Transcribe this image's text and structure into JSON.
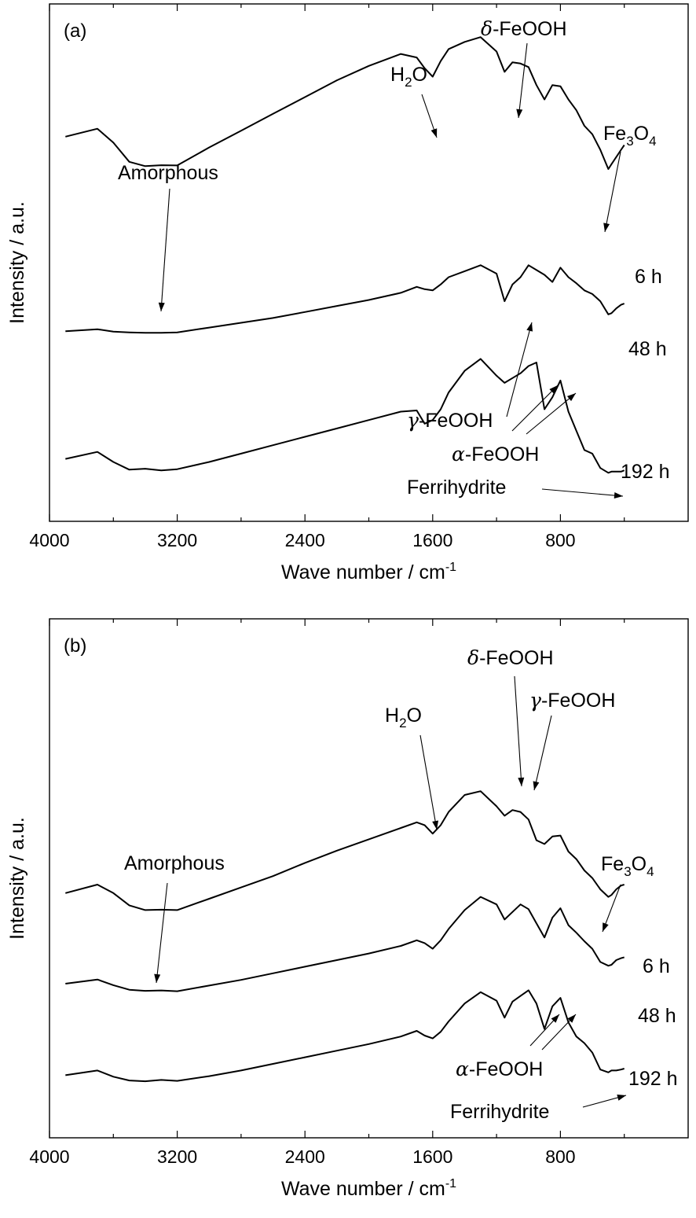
{
  "chart_data": [
    {
      "type": "line",
      "panel_label": "(a)",
      "xlabel": "Wave number / cm",
      "xlabel_sup": "-1",
      "ylabel": "Intensity / a.u.",
      "xlim": [
        4000,
        0
      ],
      "ylim": [
        0,
        10
      ],
      "xticks": [
        4000,
        3200,
        2400,
        1600,
        800
      ],
      "x": [
        3900,
        3700,
        3600,
        3500,
        3400,
        3300,
        3200,
        3000,
        2800,
        2600,
        2400,
        2200,
        2000,
        1800,
        1700,
        1650,
        1600,
        1550,
        1500,
        1400,
        1300,
        1200,
        1150,
        1100,
        1050,
        1000,
        950,
        900,
        850,
        800,
        750,
        700,
        650,
        600,
        550,
        500,
        480,
        450,
        420,
        400
      ],
      "series": [
        {
          "name": "6 h",
          "values": [
            5.45,
            5.78,
            5.2,
            4.4,
            4.22,
            4.26,
            4.25,
            5.0,
            5.7,
            6.4,
            7.1,
            7.8,
            8.4,
            8.9,
            8.75,
            8.3,
            7.95,
            8.6,
            9.1,
            9.4,
            9.6,
            9.0,
            8.15,
            8.55,
            8.5,
            8.35,
            7.6,
            7.0,
            7.6,
            7.55,
            7.0,
            6.55,
            5.9,
            5.55,
            4.9,
            4.1,
            4.3,
            4.6,
            4.9,
            5.1
          ]
        },
        {
          "name": "48 h",
          "values": [
            2.65,
            2.73,
            2.63,
            2.6,
            2.58,
            2.58,
            2.6,
            2.8,
            3.0,
            3.2,
            3.45,
            3.7,
            3.95,
            4.25,
            4.5,
            4.4,
            4.35,
            4.6,
            4.9,
            5.15,
            5.4,
            5.05,
            3.9,
            4.6,
            4.9,
            5.4,
            5.2,
            5.0,
            4.7,
            5.3,
            4.9,
            4.65,
            4.35,
            4.2,
            3.9,
            3.35,
            3.4,
            3.6,
            3.75,
            3.8
          ]
        },
        {
          "name": "192 h",
          "values": [
            1.03,
            1.32,
            0.9,
            0.58,
            0.62,
            0.55,
            0.6,
            0.9,
            1.25,
            1.6,
            1.95,
            2.3,
            2.65,
            3.0,
            3.05,
            2.5,
            2.65,
            3.1,
            3.8,
            4.7,
            5.2,
            4.5,
            4.2,
            4.4,
            4.6,
            4.9,
            5.05,
            3.1,
            3.6,
            4.3,
            3.0,
            2.2,
            1.4,
            1.25,
            0.65,
            0.45,
            0.5,
            0.5,
            0.5,
            0.55
          ]
        }
      ],
      "series_label_positions": [
        {
          "x": 330
        },
        {
          "x": 330
        },
        {
          "x": 330
        }
      ],
      "annotations": [
        {
          "text": "Amorphous"
        },
        {
          "text": "H",
          "sub": "2",
          "after": "O"
        },
        {
          "text": "δ",
          "after": "-FeOOH"
        },
        {
          "text": "Fe",
          "sub": "3",
          "after": "O",
          "sub2": "4"
        },
        {
          "text": "γ",
          "after": "-FeOOH"
        },
        {
          "text": "α",
          "after": "-FeOOH"
        },
        {
          "text": "Ferrihydrite"
        }
      ]
    },
    {
      "type": "line",
      "panel_label": "(b)",
      "xlabel": "Wave number / cm",
      "xlabel_sup": "-1",
      "ylabel": "Intensity / a.u.",
      "xlim": [
        4000,
        0
      ],
      "ylim": [
        0,
        10
      ],
      "xticks": [
        4000,
        3200,
        2400,
        1600,
        800
      ],
      "x": [
        3900,
        3700,
        3600,
        3500,
        3400,
        3300,
        3200,
        3000,
        2800,
        2600,
        2400,
        2200,
        2000,
        1800,
        1700,
        1650,
        1600,
        1550,
        1500,
        1400,
        1300,
        1200,
        1150,
        1100,
        1050,
        1000,
        950,
        900,
        850,
        800,
        750,
        700,
        650,
        600,
        550,
        500,
        480,
        450,
        420,
        400
      ],
      "series": [
        {
          "name": "6 h",
          "values": [
            3.3,
            3.75,
            3.3,
            2.65,
            2.4,
            2.42,
            2.4,
            3.0,
            3.6,
            4.2,
            4.9,
            5.55,
            6.15,
            6.75,
            7.05,
            6.9,
            6.45,
            6.9,
            7.6,
            8.5,
            8.7,
            7.9,
            7.4,
            7.7,
            7.6,
            7.2,
            6.1,
            5.9,
            6.3,
            6.35,
            5.5,
            5.1,
            4.5,
            4.1,
            3.5,
            3.1,
            3.2,
            3.5,
            3.7,
            3.75
          ]
        },
        {
          "name": "48 h",
          "values": [
            1.5,
            1.72,
            1.42,
            1.18,
            1.12,
            1.14,
            1.1,
            1.4,
            1.7,
            2.05,
            2.4,
            2.75,
            3.1,
            3.5,
            3.8,
            3.65,
            3.35,
            3.8,
            4.4,
            5.4,
            6.1,
            5.7,
            4.9,
            5.3,
            5.7,
            5.45,
            4.7,
            3.95,
            5.0,
            5.5,
            4.6,
            4.2,
            3.75,
            3.35,
            2.65,
            2.45,
            2.5,
            2.75,
            2.85,
            2.9
          ]
        },
        {
          "name": "192 h",
          "values": [
            0.9,
            1.15,
            0.82,
            0.62,
            0.58,
            0.65,
            0.6,
            0.85,
            1.15,
            1.5,
            1.85,
            2.2,
            2.55,
            2.95,
            3.25,
            3.0,
            2.85,
            3.2,
            3.75,
            4.7,
            5.3,
            4.85,
            3.95,
            4.8,
            5.1,
            5.4,
            4.7,
            3.35,
            4.55,
            5.0,
            3.7,
            2.95,
            2.6,
            2.1,
            1.2,
            1.05,
            1.15,
            1.15,
            1.2,
            1.25
          ]
        }
      ],
      "series_label_positions": [
        {
          "x": 330
        },
        {
          "x": 330
        },
        {
          "x": 330
        }
      ],
      "annotations": [
        {
          "text": "Amorphous"
        },
        {
          "text": "H",
          "sub": "2",
          "after": "O"
        },
        {
          "text": "δ",
          "after": "-FeOOH"
        },
        {
          "text": "γ",
          "after": "-FeOOH"
        },
        {
          "text": "Fe",
          "sub": "3",
          "after": "O",
          "sub2": "4"
        },
        {
          "text": "α",
          "after": "-FeOOH"
        },
        {
          "text": "Ferrihydrite"
        }
      ]
    }
  ]
}
